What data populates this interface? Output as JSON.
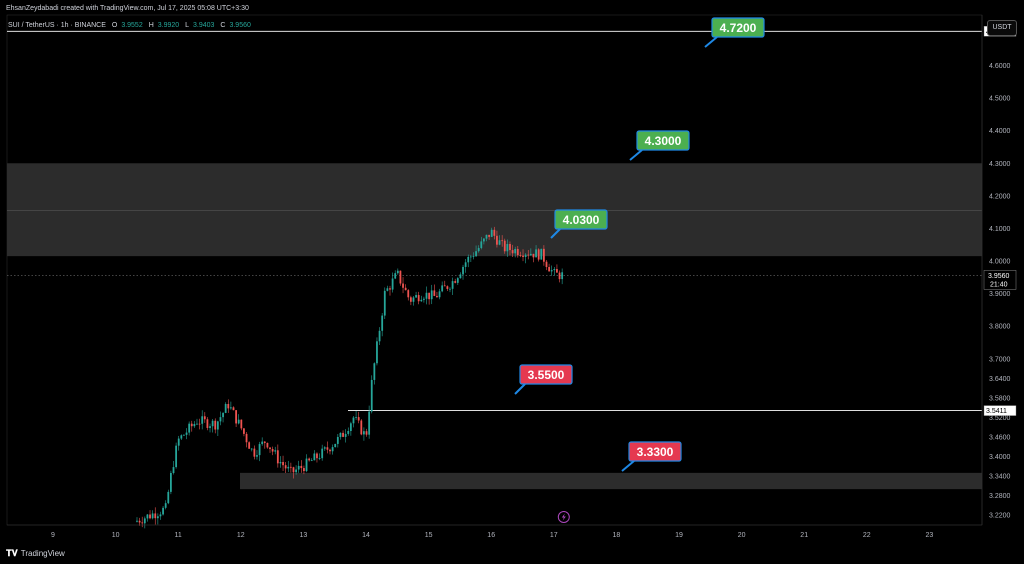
{
  "header": {
    "created_by": "EhsanZeydabadi created with TradingView.com, Jul 17, 2025 05:08 UTC+3:30",
    "symbol": "SUI / TetherUS · 1h · BINANCE",
    "ohlc": [
      {
        "label": "O",
        "value": "3.9552"
      },
      {
        "label": "H",
        "value": "3.9920"
      },
      {
        "label": "L",
        "value": "3.9403"
      },
      {
        "label": "C",
        "value": "3.9560"
      }
    ],
    "currency": "USDT"
  },
  "footer": {
    "brand": "TradingView",
    "logo_icon": "tradingview-logo-icon"
  },
  "colors": {
    "background": "#000000",
    "up_candle": "#26a69a",
    "down_candle": "#ef5350",
    "zone_fill": "#2e2e2e",
    "green_label": "#4caf50",
    "red_label": "#e53950",
    "label_border": "#1e88e5",
    "line": "#ffffff"
  },
  "chart_data": {
    "type": "candlestick",
    "yscale": "linear",
    "ylim": [
      3.19,
      4.755
    ],
    "y_ticks": [
      "4.6000",
      "4.5000",
      "4.4000",
      "4.3000",
      "4.2000",
      "4.1000",
      "4.0000",
      "3.9000",
      "3.8000",
      "3.7000",
      "3.6400",
      "3.5800",
      "3.5200",
      "3.4600",
      "3.4000",
      "3.3400",
      "3.2800",
      "3.2200"
    ],
    "x_ticks": [
      "9",
      "10",
      "11",
      "12",
      "13",
      "14",
      "15",
      "16",
      "17",
      "18",
      "19",
      "20",
      "21",
      "22",
      "23"
    ],
    "annotations": [
      {
        "label": "4.7200",
        "color": "green"
      },
      {
        "label": "4.3000",
        "color": "green"
      },
      {
        "label": "4.0300",
        "color": "green"
      },
      {
        "label": "3.5500",
        "color": "red"
      },
      {
        "label": "3.3300",
        "color": "red"
      }
    ],
    "horizontal_lines": [
      {
        "price": 4.705,
        "label": "4.7050"
      },
      {
        "price": 3.5411,
        "label": "3.5411"
      }
    ],
    "zones": [
      {
        "from": 4.015,
        "to": 4.3
      },
      {
        "from": 3.3,
        "to": 3.35
      }
    ],
    "current_price": {
      "price": 3.956,
      "label": "3.9560",
      "countdown": "21:40"
    },
    "event_marker": {
      "day": "17",
      "icon": "lightning-icon"
    },
    "candles_summary": [
      {
        "day": "10",
        "open": 3.2,
        "close": 3.22
      },
      {
        "day": "11",
        "open": 3.22,
        "close": 3.52
      },
      {
        "day": "12",
        "open": 3.54,
        "close": 3.4
      },
      {
        "day": "13",
        "open": 3.34,
        "close": 3.53
      },
      {
        "day": "14",
        "open": 3.52,
        "close": 3.92
      },
      {
        "day": "15",
        "open": 3.92,
        "close": 3.95
      },
      {
        "day": "16",
        "open": 3.96,
        "close": 4.02
      },
      {
        "day": "17",
        "open": 4.02,
        "close": 3.956
      }
    ]
  }
}
